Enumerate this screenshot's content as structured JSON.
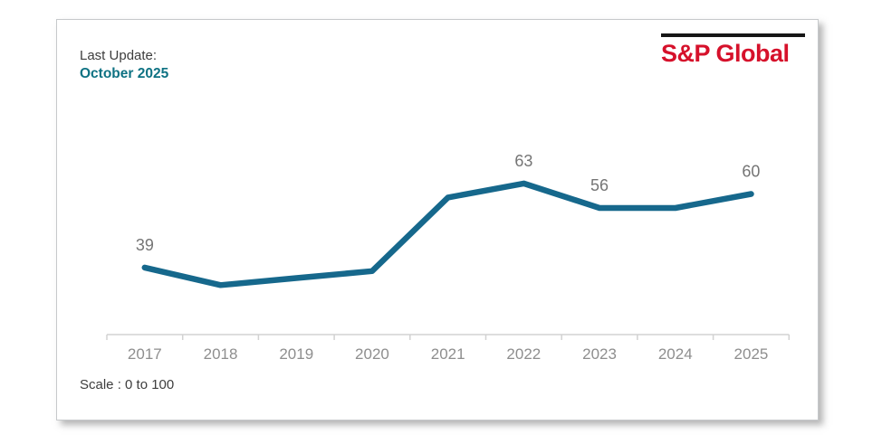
{
  "header": {
    "last_update_label": "Last Update:",
    "last_update_value": "October 2025",
    "logo_text": "S&P Global"
  },
  "footer": {
    "scale_note": "Scale : 0 to 100"
  },
  "colors": {
    "line": "#16688c",
    "accent_teal": "#0e7283",
    "logo_red": "#d6112b",
    "logo_bar_black": "#161616",
    "data_label_gray": "#757575",
    "axis_gray": "#d2d2d2",
    "tick_label_gray": "#8e8e8e"
  },
  "chart_data": {
    "type": "line",
    "x": [
      2017,
      2018,
      2019,
      2020,
      2021,
      2022,
      2023,
      2024,
      2025
    ],
    "values": [
      39,
      34,
      36,
      38,
      59,
      63,
      56,
      56,
      60
    ],
    "labeled_values": [
      39,
      null,
      null,
      null,
      null,
      63,
      56,
      null,
      60
    ],
    "title": "",
    "xlabel": "",
    "ylabel": "",
    "ylim": [
      0,
      100
    ],
    "scale_note": "Scale : 0 to 100",
    "grid": false,
    "legend": false
  }
}
